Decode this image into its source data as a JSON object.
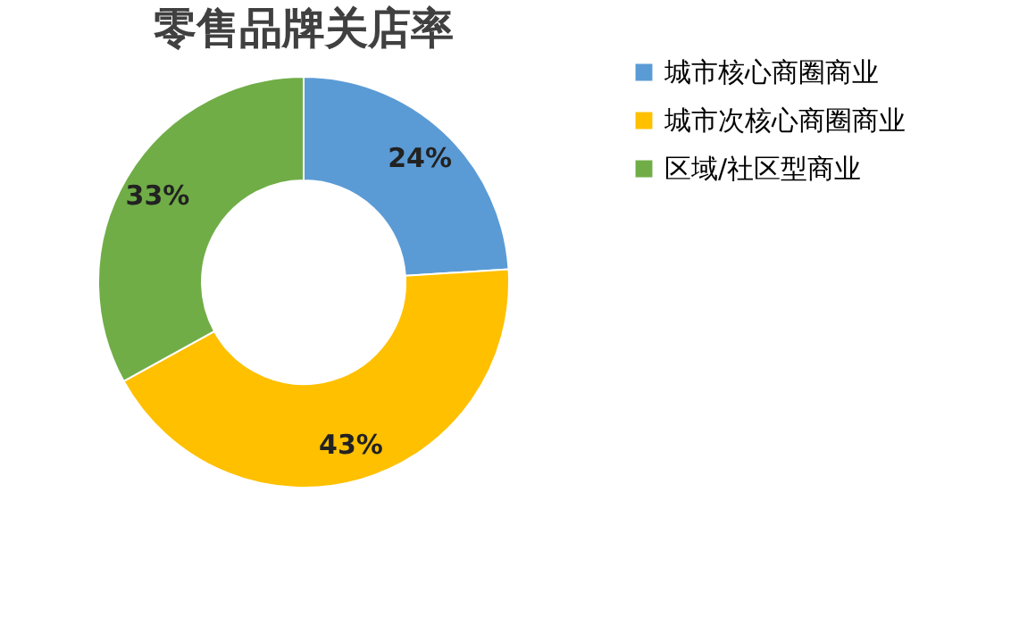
{
  "chart_data": {
    "type": "donut",
    "title": "零售品牌关店率",
    "categories": [
      "城市核心商圈商业",
      "城市次核心商圈商业",
      "区域/社区型商业"
    ],
    "values": [
      24,
      43,
      33
    ],
    "colors": [
      "#5b9bd5",
      "#ffc000",
      "#70ad47"
    ],
    "value_labels": [
      "24%",
      "43%",
      "33%"
    ],
    "legend": "right"
  }
}
